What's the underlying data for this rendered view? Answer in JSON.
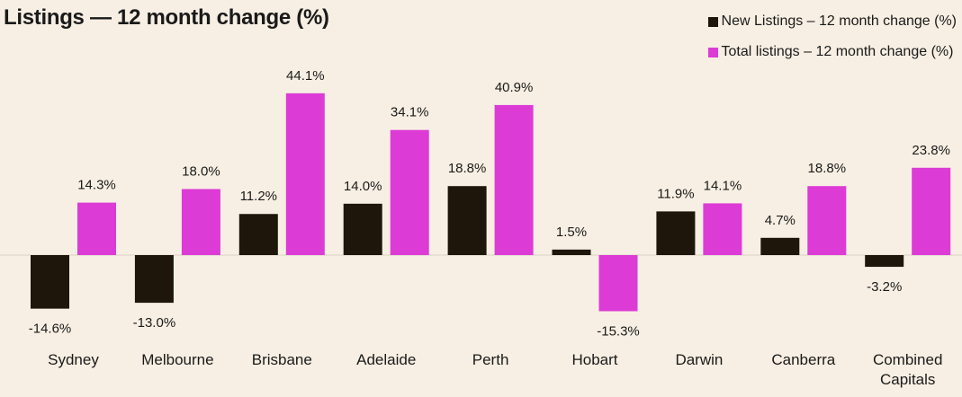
{
  "chart_data": {
    "type": "bar",
    "title": "Listings — 12 month change (%)",
    "categories": [
      "Sydney",
      "Melbourne",
      "Brisbane",
      "Adelaide",
      "Perth",
      "Hobart",
      "Darwin",
      "Canberra",
      "Combined Capitals"
    ],
    "series": [
      {
        "name": "New Listings – 12 month change (%)",
        "color": "#1e150b",
        "values": [
          -14.6,
          -13.0,
          11.2,
          14.0,
          18.8,
          1.5,
          11.9,
          4.7,
          -3.2
        ],
        "labels": [
          "-14.6%",
          "-13.0%",
          "11.2%",
          "14.0%",
          "18.8%",
          "1.5%",
          "11.9%",
          "4.7%",
          "-3.2%"
        ]
      },
      {
        "name": "Total listings – 12 month change (%)",
        "color": "#dd3bd6",
        "values": [
          14.3,
          18.0,
          44.1,
          34.1,
          40.9,
          -15.3,
          14.1,
          18.8,
          23.8
        ],
        "labels": [
          "14.3%",
          "18.0%",
          "44.1%",
          "34.1%",
          "40.9%",
          "-15.3%",
          "14.1%",
          "18.8%",
          "23.8%"
        ]
      }
    ],
    "ylim": [
      -20,
      50
    ],
    "grid": false,
    "legend": "top-right"
  }
}
